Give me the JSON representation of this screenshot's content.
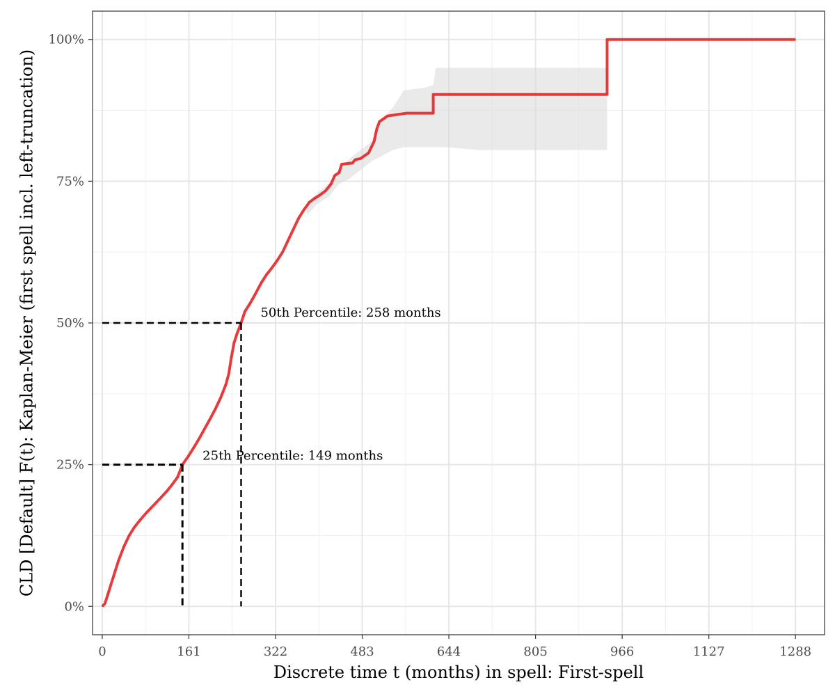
{
  "chart_data": {
    "type": "line",
    "xlabel": "Discrete time t (months) in spell: First-spell",
    "ylabel": "CLD [Default] F(t): Kaplan-Meier (first spell incl. left-truncation)",
    "xlim": [
      -18,
      1342
    ],
    "ylim": [
      -0.05,
      1.05
    ],
    "x_ticks": [
      0,
      161,
      322,
      483,
      644,
      805,
      966,
      1127,
      1288
    ],
    "x_tick_labels": [
      "0",
      "161",
      "322",
      "483",
      "644",
      "805",
      "966",
      "1127",
      "1288"
    ],
    "y_ticks": [
      0,
      0.25,
      0.5,
      0.75,
      1.0
    ],
    "y_tick_labels": [
      "0%",
      "25%",
      "50%",
      "75%",
      "100%"
    ],
    "grid": true,
    "series": [
      {
        "color": "#e31a1c",
        "points": [
          [
            0,
            0
          ],
          [
            5,
            0.005
          ],
          [
            10,
            0.02
          ],
          [
            20,
            0.05
          ],
          [
            30,
            0.08
          ],
          [
            40,
            0.105
          ],
          [
            50,
            0.125
          ],
          [
            60,
            0.14
          ],
          [
            70,
            0.152
          ],
          [
            80,
            0.163
          ],
          [
            90,
            0.173
          ],
          [
            100,
            0.183
          ],
          [
            110,
            0.193
          ],
          [
            120,
            0.203
          ],
          [
            130,
            0.215
          ],
          [
            140,
            0.228
          ],
          [
            149,
            0.25
          ],
          [
            160,
            0.265
          ],
          [
            170,
            0.28
          ],
          [
            180,
            0.296
          ],
          [
            190,
            0.313
          ],
          [
            200,
            0.33
          ],
          [
            210,
            0.348
          ],
          [
            220,
            0.368
          ],
          [
            230,
            0.392
          ],
          [
            235,
            0.41
          ],
          [
            240,
            0.44
          ],
          [
            245,
            0.465
          ],
          [
            250,
            0.48
          ],
          [
            258,
            0.5
          ],
          [
            265,
            0.52
          ],
          [
            275,
            0.535
          ],
          [
            285,
            0.552
          ],
          [
            295,
            0.57
          ],
          [
            305,
            0.585
          ],
          [
            315,
            0.597
          ],
          [
            325,
            0.61
          ],
          [
            335,
            0.625
          ],
          [
            345,
            0.645
          ],
          [
            355,
            0.665
          ],
          [
            365,
            0.685
          ],
          [
            375,
            0.7
          ],
          [
            385,
            0.713
          ],
          [
            395,
            0.72
          ],
          [
            405,
            0.726
          ],
          [
            415,
            0.733
          ],
          [
            425,
            0.745
          ],
          [
            432,
            0.76
          ],
          [
            440,
            0.765
          ],
          [
            445,
            0.78
          ],
          [
            465,
            0.782
          ],
          [
            470,
            0.788
          ],
          [
            480,
            0.79
          ],
          [
            495,
            0.8
          ],
          [
            500,
            0.81
          ],
          [
            505,
            0.82
          ],
          [
            510,
            0.842
          ],
          [
            515,
            0.855
          ],
          [
            530,
            0.865
          ],
          [
            565,
            0.87
          ],
          [
            615,
            0.87
          ],
          [
            615,
            0.903
          ],
          [
            938,
            0.903
          ],
          [
            938,
            1.0
          ],
          [
            1288,
            1.0
          ]
        ],
        "ci_lower": [
          [
            380,
            0.69
          ],
          [
            400,
            0.71
          ],
          [
            420,
            0.722
          ],
          [
            440,
            0.745
          ],
          [
            460,
            0.755
          ],
          [
            480,
            0.77
          ],
          [
            500,
            0.785
          ],
          [
            520,
            0.795
          ],
          [
            540,
            0.805
          ],
          [
            560,
            0.81
          ],
          [
            600,
            0.81
          ],
          [
            640,
            0.81
          ],
          [
            700,
            0.805
          ],
          [
            800,
            0.805
          ],
          [
            938,
            0.805
          ]
        ],
        "ci_upper": [
          [
            380,
            0.71
          ],
          [
            400,
            0.73
          ],
          [
            420,
            0.745
          ],
          [
            440,
            0.77
          ],
          [
            460,
            0.79
          ],
          [
            480,
            0.805
          ],
          [
            500,
            0.82
          ],
          [
            520,
            0.86
          ],
          [
            540,
            0.88
          ],
          [
            560,
            0.91
          ],
          [
            600,
            0.915
          ],
          [
            615,
            0.92
          ],
          [
            620,
            0.95
          ],
          [
            700,
            0.95
          ],
          [
            938,
            0.95
          ]
        ]
      }
    ],
    "percentiles": [
      {
        "x": 149,
        "y": 0.25,
        "label": "25th Percentile: 149 months"
      },
      {
        "x": 258,
        "y": 0.5,
        "label": "50th Percentile: 258 months"
      }
    ]
  }
}
